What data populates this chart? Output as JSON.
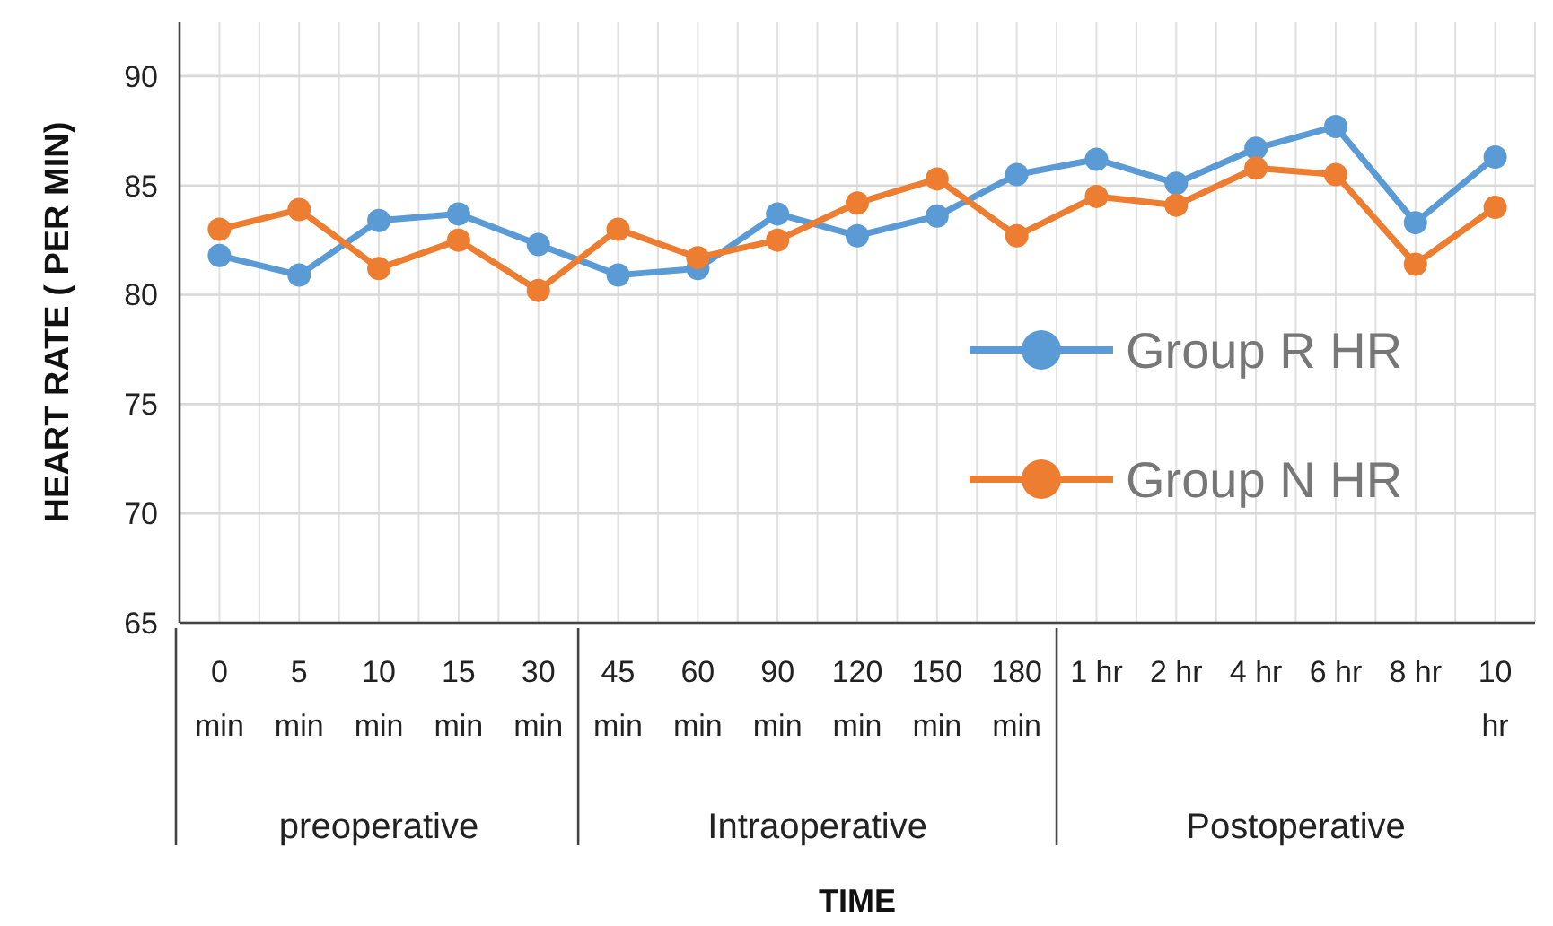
{
  "chart_data": {
    "type": "line",
    "xlabel": "TIME",
    "ylabel": "HEART RATE ( PER MIN)",
    "categories": [
      "0 min",
      "5 min",
      "10 min",
      "15 min",
      "30 min",
      "45 min",
      "60 min",
      "90 min",
      "120 min",
      "150 min",
      "180 min",
      "1 hr",
      "2 hr",
      "4 hr",
      "6 hr",
      "8 hr",
      "10 hr"
    ],
    "series": [
      {
        "name": "Group R HR",
        "color": "#5b9bd5",
        "values": [
          81.8,
          80.9,
          83.4,
          83.7,
          82.3,
          80.9,
          81.2,
          83.7,
          82.7,
          83.6,
          85.5,
          86.2,
          85.1,
          86.7,
          87.7,
          83.3,
          86.3
        ]
      },
      {
        "name": "Group N HR",
        "color": "#ed7d31",
        "values": [
          83.0,
          83.9,
          81.2,
          82.5,
          80.2,
          83.0,
          81.7,
          82.5,
          84.2,
          85.3,
          82.7,
          84.5,
          84.1,
          85.8,
          85.5,
          81.4,
          84.0
        ]
      }
    ],
    "ylim": [
      65,
      92.5
    ],
    "yticks": [
      65,
      70,
      75,
      80,
      85,
      90
    ],
    "grid": true,
    "legend": "right",
    "marker": "circle",
    "line_style": "solid",
    "annotations": [
      "preoperative",
      "Intraoperative",
      "Postoperative"
    ]
  }
}
